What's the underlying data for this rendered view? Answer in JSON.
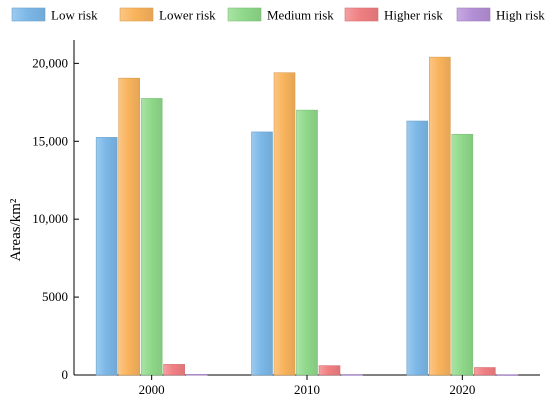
{
  "chart_data": {
    "type": "bar",
    "categories": [
      "2000",
      "2010",
      "2020"
    ],
    "series": [
      {
        "name": "Low risk",
        "values": [
          15250,
          15600,
          16300
        ],
        "color": "#7cb8e8"
      },
      {
        "name": "Lower risk",
        "values": [
          19050,
          19400,
          20400
        ],
        "color": "#f9b35c"
      },
      {
        "name": "Medium risk",
        "values": [
          17750,
          17000,
          15450
        ],
        "color": "#8fd98a"
      },
      {
        "name": "Higher risk",
        "values": [
          680,
          600,
          480
        ],
        "color": "#f07f82"
      },
      {
        "name": "High risk",
        "values": [
          40,
          30,
          20
        ],
        "color": "#b48fd6"
      }
    ],
    "title": "",
    "xlabel": "",
    "ylabel": "Areas/km²",
    "ylim": [
      0,
      21500
    ],
    "yticks": [
      0,
      5000,
      10000,
      15000,
      20000
    ],
    "ytick_labels": [
      "0",
      "5000",
      "10,000",
      "15,000",
      "20,000"
    ],
    "grid": false,
    "legend_position": "top"
  }
}
